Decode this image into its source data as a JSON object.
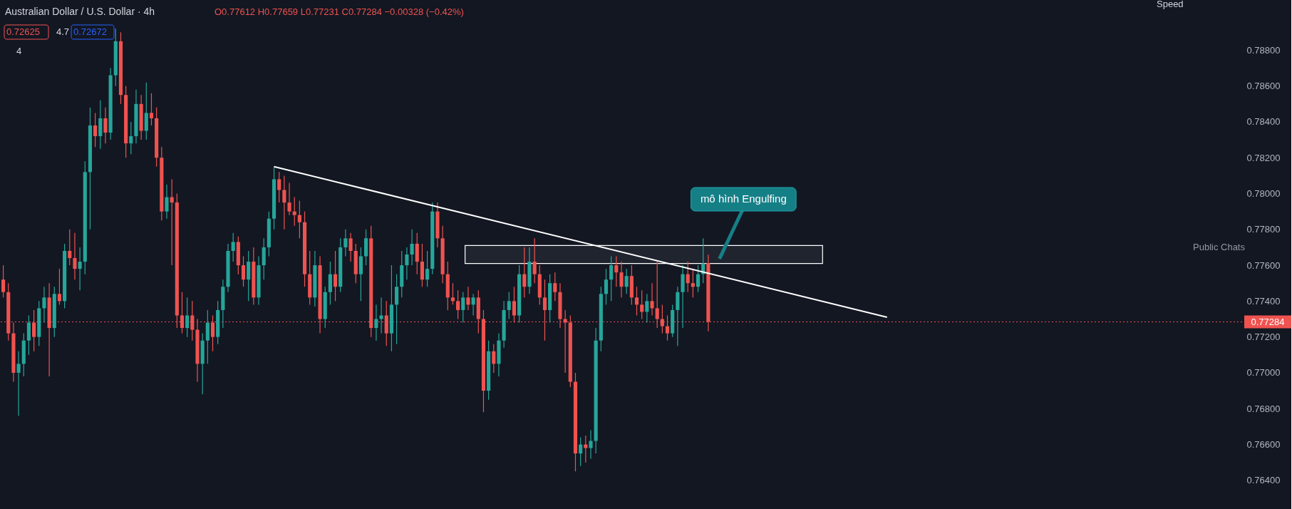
{
  "chart_data": {
    "type": "candlestick",
    "title": "Australian Dollar / U.S. Dollar · 4h",
    "subtitle": "O0.77612 H0.77659 L0.77231 C0.77284 −0.00328 (−0.42%)",
    "annotations": [
      "mô hình Engulfing",
      "0.72625",
      "4.7",
      "0.72672",
      "4",
      "Public Chats",
      "Speed"
    ],
    "colors": [
      "#ef5350",
      "#ef5350",
      "#ef5350",
      "#26a69a",
      "#26a69a",
      "#26a69a",
      "#ef5350",
      "#26a69a",
      "#26a69a",
      "#ef5350",
      "#26a69a",
      "#ef5350",
      "#26a69a",
      "#ef5350",
      "#ef5350",
      "#26a69a",
      "#26a69a",
      "#26a69a",
      "#ef5350",
      "#26a69a",
      "#ef5350",
      "#26a69a",
      "#26a69a",
      "#ef5350",
      "#ef5350",
      "#26a69a",
      "#26a69a",
      "#ef5350",
      "#26a69a",
      "#ef5350",
      "#ef5350",
      "#ef5350",
      "#26a69a",
      "#ef5350",
      "#ef5350",
      "#ef5350",
      "#26a69a",
      "#ef5350",
      "#ef5350",
      "#26a69a",
      "#26a69a",
      "#ef5350",
      "#26a69a",
      "#26a69a",
      "#26a69a",
      "#26a69a",
      "#ef5350",
      "#ef5350",
      "#26a69a",
      "#ef5350",
      "#26a69a",
      "#26a69a",
      "#26a69a",
      "#26a69a",
      "#ef5350",
      "#ef5350",
      "#ef5350",
      "#ef5350",
      "#ef5350",
      "#ef5350",
      "#ef5350",
      "#26a69a",
      "#ef5350",
      "#26a69a",
      "#26a69a",
      "#ef5350",
      "#26a69a",
      "#26a69a",
      "#ef5350",
      "#ef5350",
      "#26a69a",
      "#26a69a",
      "#ef5350",
      "#26a69a",
      "#26a69a",
      "#ef5350",
      "#26a69a",
      "#26a69a",
      "#26a69a",
      "#26a69a",
      "#26a69a",
      "#ef5350",
      "#ef5350",
      "#26a69a",
      "#26a69a",
      "#ef5350",
      "#ef5350",
      "#ef5350",
      "#ef5350",
      "#ef5350",
      "#26a69a",
      "#ef5350",
      "#26a69a",
      "#ef5350",
      "#ef5350",
      "#26a69a",
      "#ef5350",
      "#26a69a",
      "#26a69a",
      "#26a69a",
      "#ef5350",
      "#26a69a",
      "#ef5350",
      "#26a69a",
      "#ef5350",
      "#ef5350",
      "#ef5350",
      "#26a69a",
      "#ef5350",
      "#ef5350",
      "#ef5350",
      "#ef5350",
      "#ef5350",
      "#26a69a",
      "#ef5350",
      "#26a69a",
      "#26a69a",
      "#26a69a",
      "#26a69a",
      "#26a69a",
      "#ef5350",
      "#ef5350",
      "#26a69a",
      "#ef5350",
      "#ef5350",
      "#ef5350",
      "#26a69a",
      "#ef5350",
      "#ef5350",
      "#ef5350",
      "#ef5350",
      "#26a69a",
      "#26a69a",
      "#26a69a",
      "#ef5350",
      "#ef5350",
      "#26a69a",
      "#26a69a",
      "#ef5350",
      null,
      null,
      null,
      null,
      null,
      null,
      null,
      null,
      null,
      null,
      null,
      null,
      null,
      null,
      null,
      null,
      null,
      null,
      null,
      null,
      null,
      null,
      null,
      null,
      null,
      null,
      null,
      null,
      null,
      null,
      null,
      null,
      null,
      null,
      null,
      null,
      null,
      null,
      null,
      null,
      null,
      null,
      null,
      null,
      null,
      null,
      null,
      null,
      null,
      null,
      null,
      null,
      null,
      null,
      null,
      null,
      null,
      null,
      null,
      null,
      null,
      null,
      null,
      null,
      null,
      null,
      null,
      null,
      null,
      null,
      null,
      null,
      null,
      null,
      null,
      null,
      null,
      null,
      null,
      null,
      null,
      null,
      null,
      null,
      null,
      null,
      null,
      null,
      null,
      null,
      null,
      null,
      null,
      null,
      null,
      null,
      null,
      null,
      null,
      null,
      null,
      null,
      null,
      null
    ],
    "ylim": [
      0.7624,
      0.7908
    ],
    "yticks": [
      {
        "value": 0.764,
        "label": "0.76400"
      },
      {
        "value": 0.766,
        "label": "0.76600"
      },
      {
        "value": 0.768,
        "label": "0.76800"
      },
      {
        "value": 0.77,
        "label": "0.77000"
      },
      {
        "value": 0.772,
        "label": "0.77200"
      },
      {
        "value": 0.774,
        "label": "0.77400"
      },
      {
        "value": 0.776,
        "label": "0.77600"
      },
      {
        "value": 0.778,
        "label": "0.77800"
      },
      {
        "value": 0.78,
        "label": "0.78000"
      },
      {
        "value": 0.782,
        "label": "0.78200"
      },
      {
        "value": 0.784,
        "label": "0.78400"
      },
      {
        "value": 0.786,
        "label": "0.78600"
      },
      {
        "value": 0.788,
        "label": "0.78800"
      }
    ],
    "tick_labels": "y",
    "grid": false,
    "ref_lines": [
      {
        "axis": "y",
        "value": 0.77284,
        "label": "0.77284",
        "color": "#ef5350",
        "line_style": "dotted"
      }
    ],
    "bands": [
      {
        "axis": "y",
        "from": 0.7761,
        "to": 0.7771,
        "color": "#ffffff"
      }
    ],
    "series": [
      {
        "type": "line",
        "color": "#ffffff",
        "values": [
          null,
          null,
          null,
          null,
          null,
          null,
          null,
          null,
          null,
          null,
          null,
          null,
          null,
          null,
          null,
          null,
          null,
          null,
          null,
          null,
          null,
          null,
          null,
          null,
          null,
          null,
          null,
          null,
          null,
          null,
          null,
          null,
          null,
          null,
          null,
          null,
          null,
          null,
          null,
          null,
          null,
          null,
          null,
          null,
          null,
          null,
          null,
          null,
          null,
          null,
          null,
          null,
          null,
          0.7815,
          null,
          null,
          null,
          null,
          null,
          null,
          null,
          null,
          null,
          null,
          null,
          null,
          null,
          null,
          null,
          null,
          null,
          null,
          null,
          null,
          null,
          null,
          null,
          null,
          null,
          null,
          null,
          null,
          null,
          null,
          null,
          null,
          null,
          null,
          null,
          null,
          null,
          null,
          null,
          null,
          null,
          null,
          null,
          null,
          null,
          null,
          null,
          null,
          null,
          null,
          null,
          null,
          null,
          null,
          null,
          null,
          null,
          null,
          null,
          null,
          null,
          null,
          null,
          null,
          null,
          null,
          null,
          null,
          null,
          null,
          null,
          null,
          null,
          null,
          null,
          null,
          null,
          null,
          null,
          null,
          null,
          null,
          null,
          null,
          null,
          null,
          null,
          null,
          null,
          null,
          null,
          null,
          null,
          null,
          null,
          null,
          null,
          null,
          null,
          null,
          null,
          null,
          null,
          null,
          null,
          null,
          null,
          null,
          null,
          null,
          null,
          null,
          null,
          null,
          null,
          null,
          null,
          null,
          null,
          0.7731,
          null,
          null,
          null,
          null,
          null,
          null,
          null,
          null,
          null,
          null,
          null,
          null,
          null,
          null,
          null,
          null,
          null,
          null,
          null,
          null,
          null,
          null,
          null,
          null,
          null,
          null,
          null,
          null,
          null,
          null,
          null,
          null,
          null,
          null,
          null,
          null,
          null,
          null,
          null,
          null,
          null,
          null,
          null,
          null,
          null,
          null,
          null,
          null,
          null,
          null,
          null,
          null,
          null,
          null,
          null,
          null,
          null,
          null,
          null,
          null,
          null,
          null,
          null,
          null,
          null,
          null,
          null,
          null,
          null
        ]
      }
    ],
    "categories": [
      null,
      null,
      null,
      null,
      null,
      null,
      null,
      null,
      null,
      null,
      null,
      null,
      null,
      null,
      null,
      null,
      null,
      null,
      null,
      null,
      null,
      null,
      null,
      null,
      null,
      null,
      null,
      null,
      null,
      null,
      null,
      null,
      null,
      null,
      null,
      null,
      null,
      null,
      null,
      null,
      null,
      null,
      null,
      null,
      null,
      null,
      null,
      null,
      null,
      null,
      null,
      null,
      null,
      null,
      null,
      null,
      null,
      null,
      null,
      null,
      null,
      null,
      null,
      null,
      null,
      null,
      null,
      null,
      null,
      null,
      null,
      null,
      null,
      null,
      null,
      null,
      null,
      null,
      null,
      null,
      null,
      null,
      null,
      null,
      null,
      null,
      null,
      null,
      null,
      null,
      null,
      null,
      null,
      null,
      null,
      null,
      null,
      null,
      null,
      null,
      null,
      null,
      null,
      null,
      null,
      null,
      null,
      null,
      null,
      null,
      null,
      null,
      null,
      null,
      null,
      null,
      null,
      null,
      null,
      null,
      null,
      null,
      null,
      null,
      null,
      null,
      null,
      null,
      null,
      null,
      null,
      null,
      null,
      null,
      null,
      null,
      null,
      null,
      null,
      null,
      null,
      null,
      null,
      null,
      null,
      null,
      null,
      null,
      null,
      null,
      null,
      null,
      null,
      null,
      null,
      null,
      null,
      null,
      null,
      null,
      null,
      null,
      null,
      null,
      null,
      null,
      null,
      null,
      null,
      null,
      null,
      null,
      null,
      null,
      null,
      null,
      null,
      null,
      null,
      null,
      null,
      null,
      null,
      null,
      null,
      null,
      null,
      null,
      null,
      null,
      null,
      null,
      null,
      null,
      null,
      null,
      null,
      null,
      null,
      null,
      null,
      null,
      null,
      null,
      null,
      null,
      null,
      null,
      null,
      null,
      null,
      null,
      null,
      null,
      null,
      null,
      null,
      null,
      null,
      null,
      null,
      null,
      null,
      null,
      null,
      null,
      null,
      null,
      null,
      null,
      null,
      null,
      null,
      null,
      null,
      null,
      null,
      null,
      null,
      null,
      null,
      null,
      null
    ],
    "ohlc": [
      [
        0.7752,
        0.776,
        0.7742,
        0.7745
      ],
      [
        0.7745,
        0.775,
        0.7718,
        0.7722
      ],
      [
        0.7722,
        0.7728,
        0.7695,
        0.77
      ],
      [
        0.77,
        0.7712,
        0.7676,
        0.7705
      ],
      [
        0.7705,
        0.7722,
        0.7698,
        0.7718
      ],
      [
        0.7718,
        0.7732,
        0.771,
        0.7728
      ],
      [
        0.7728,
        0.7735,
        0.7712,
        0.772
      ],
      [
        0.772,
        0.774,
        0.7715,
        0.7736
      ],
      [
        0.7736,
        0.7748,
        0.7728,
        0.7742
      ],
      [
        0.7742,
        0.775,
        0.7698,
        0.7725
      ],
      [
        0.7725,
        0.7748,
        0.772,
        0.7744
      ],
      [
        0.7744,
        0.7758,
        0.7738,
        0.774
      ],
      [
        0.774,
        0.7772,
        0.7736,
        0.7768
      ],
      [
        0.7768,
        0.778,
        0.776,
        0.7764
      ],
      [
        0.7764,
        0.7778,
        0.7752,
        0.7758
      ],
      [
        0.7758,
        0.777,
        0.7746,
        0.7762
      ],
      [
        0.7762,
        0.7818,
        0.7755,
        0.7812
      ],
      [
        0.7812,
        0.7848,
        0.778,
        0.7838
      ],
      [
        0.7838,
        0.7845,
        0.7826,
        0.7832
      ],
      [
        0.7832,
        0.7852,
        0.7825,
        0.7842
      ],
      [
        0.7842,
        0.7848,
        0.7828,
        0.7834
      ],
      [
        0.7834,
        0.787,
        0.783,
        0.7866
      ],
      [
        0.7866,
        0.7892,
        0.786,
        0.7885
      ],
      [
        0.7885,
        0.789,
        0.785,
        0.7855
      ],
      [
        0.7855,
        0.786,
        0.782,
        0.7828
      ],
      [
        0.7828,
        0.784,
        0.7822,
        0.7832
      ],
      [
        0.7832,
        0.7858,
        0.7828,
        0.785
      ],
      [
        0.785,
        0.7855,
        0.783,
        0.7835
      ],
      [
        0.7835,
        0.7862,
        0.783,
        0.7845
      ],
      [
        0.7845,
        0.7856,
        0.7838,
        0.7842
      ],
      [
        0.7842,
        0.7848,
        0.7815,
        0.782
      ],
      [
        0.782,
        0.7826,
        0.7785,
        0.779
      ],
      [
        0.779,
        0.7805,
        0.7786,
        0.7798
      ],
      [
        0.7798,
        0.7808,
        0.776,
        0.7795
      ],
      [
        0.7795,
        0.78,
        0.7725,
        0.7732
      ],
      [
        0.7732,
        0.7745,
        0.7722,
        0.7725
      ],
      [
        0.7725,
        0.7742,
        0.772,
        0.7732
      ],
      [
        0.7732,
        0.774,
        0.7718,
        0.7724
      ],
      [
        0.7724,
        0.773,
        0.7695,
        0.7705
      ],
      [
        0.7705,
        0.7722,
        0.7688,
        0.7718
      ],
      [
        0.7718,
        0.7735,
        0.7705,
        0.7728
      ],
      [
        0.7728,
        0.7732,
        0.7712,
        0.772
      ],
      [
        0.772,
        0.774,
        0.7716,
        0.7735
      ],
      [
        0.7735,
        0.7752,
        0.7725,
        0.7748
      ],
      [
        0.7748,
        0.7772,
        0.7745,
        0.7768
      ],
      [
        0.7768,
        0.7778,
        0.7762,
        0.7773
      ],
      [
        0.7773,
        0.7776,
        0.7755,
        0.776
      ],
      [
        0.776,
        0.7765,
        0.7748,
        0.7752
      ],
      [
        0.7752,
        0.7768,
        0.774,
        0.7762
      ],
      [
        0.7762,
        0.777,
        0.7738,
        0.7742
      ],
      [
        0.7742,
        0.7765,
        0.7738,
        0.776
      ],
      [
        0.776,
        0.7775,
        0.7752,
        0.777
      ],
      [
        0.777,
        0.779,
        0.7765,
        0.7786
      ],
      [
        0.7786,
        0.7815,
        0.778,
        0.7808
      ],
      [
        0.7808,
        0.7812,
        0.7795,
        0.7802
      ],
      [
        0.7802,
        0.781,
        0.778,
        0.7795
      ],
      [
        0.7795,
        0.7806,
        0.7788,
        0.779
      ],
      [
        0.779,
        0.7798,
        0.7782,
        0.7788
      ],
      [
        0.7788,
        0.7796,
        0.7775,
        0.7784
      ],
      [
        0.7784,
        0.779,
        0.7748,
        0.7755
      ],
      [
        0.7755,
        0.7768,
        0.7738,
        0.7742
      ],
      [
        0.7742,
        0.7768,
        0.7737,
        0.776
      ],
      [
        0.776,
        0.7765,
        0.7722,
        0.773
      ],
      [
        0.773,
        0.7748,
        0.7725,
        0.7745
      ],
      [
        0.7745,
        0.7762,
        0.7738,
        0.7755
      ],
      [
        0.7755,
        0.7768,
        0.774,
        0.7748
      ],
      [
        0.7748,
        0.7775,
        0.7745,
        0.777
      ],
      [
        0.777,
        0.778,
        0.7765,
        0.7775
      ],
      [
        0.7775,
        0.7778,
        0.7762,
        0.7768
      ],
      [
        0.7768,
        0.7772,
        0.775,
        0.7755
      ],
      [
        0.7755,
        0.777,
        0.774,
        0.7765
      ],
      [
        0.7765,
        0.778,
        0.776,
        0.7775
      ],
      [
        0.7775,
        0.7782,
        0.772,
        0.7725
      ],
      [
        0.7725,
        0.7738,
        0.7718,
        0.773
      ],
      [
        0.773,
        0.7742,
        0.7722,
        0.7732
      ],
      [
        0.7732,
        0.774,
        0.7715,
        0.7722
      ],
      [
        0.7722,
        0.776,
        0.7712,
        0.7738
      ],
      [
        0.7738,
        0.7755,
        0.7716,
        0.7748
      ],
      [
        0.7748,
        0.7768,
        0.7742,
        0.776
      ],
      [
        0.776,
        0.777,
        0.7752,
        0.7766
      ],
      [
        0.7766,
        0.778,
        0.776,
        0.7772
      ],
      [
        0.7772,
        0.7778,
        0.7755,
        0.7762
      ],
      [
        0.7762,
        0.7772,
        0.7748,
        0.7752
      ],
      [
        0.7752,
        0.7768,
        0.7748,
        0.7758
      ],
      [
        0.7758,
        0.7795,
        0.7755,
        0.779
      ],
      [
        0.779,
        0.7795,
        0.777,
        0.7775
      ],
      [
        0.7775,
        0.7782,
        0.775,
        0.7755
      ],
      [
        0.7755,
        0.7762,
        0.7735,
        0.7742
      ],
      [
        0.7742,
        0.775,
        0.7738,
        0.774
      ],
      [
        0.774,
        0.7746,
        0.773,
        0.7735
      ],
      [
        0.7735,
        0.7745,
        0.7728,
        0.7742
      ],
      [
        0.7742,
        0.7748,
        0.7735,
        0.7738
      ],
      [
        0.7738,
        0.7744,
        0.7732,
        0.7742
      ],
      [
        0.7742,
        0.7746,
        0.7722,
        0.773
      ],
      [
        0.773,
        0.7735,
        0.7678,
        0.769
      ],
      [
        0.769,
        0.7718,
        0.7685,
        0.7712
      ],
      [
        0.7712,
        0.7716,
        0.77,
        0.7705
      ],
      [
        0.7705,
        0.7722,
        0.7698,
        0.7718
      ],
      [
        0.7718,
        0.774,
        0.7714,
        0.7735
      ],
      [
        0.7735,
        0.7745,
        0.773,
        0.774
      ],
      [
        0.774,
        0.7748,
        0.7728,
        0.7732
      ],
      [
        0.7732,
        0.776,
        0.7728,
        0.7755
      ],
      [
        0.7755,
        0.777,
        0.7742,
        0.7748
      ],
      [
        0.7748,
        0.777,
        0.7744,
        0.7762
      ],
      [
        0.7762,
        0.7775,
        0.775,
        0.7755
      ],
      [
        0.7755,
        0.776,
        0.7738,
        0.7742
      ],
      [
        0.7742,
        0.7752,
        0.7718,
        0.7735
      ],
      [
        0.7735,
        0.7755,
        0.7728,
        0.775
      ],
      [
        0.775,
        0.7756,
        0.774,
        0.7745
      ],
      [
        0.7745,
        0.775,
        0.7725,
        0.773
      ],
      [
        0.773,
        0.7735,
        0.77,
        0.7728
      ],
      [
        0.7728,
        0.7732,
        0.7692,
        0.7695
      ],
      [
        0.7695,
        0.77,
        0.7645,
        0.7655
      ],
      [
        0.7655,
        0.7664,
        0.7648,
        0.766
      ],
      [
        0.766,
        0.7665,
        0.765,
        0.7658
      ],
      [
        0.7658,
        0.7668,
        0.7652,
        0.7662
      ],
      [
        0.7662,
        0.7725,
        0.7655,
        0.7718
      ],
      [
        0.7718,
        0.7748,
        0.7712,
        0.7744
      ],
      [
        0.7744,
        0.7758,
        0.7738,
        0.7752
      ],
      [
        0.7752,
        0.7765,
        0.774,
        0.776
      ],
      [
        0.776,
        0.7765,
        0.7748,
        0.7756
      ],
      [
        0.7756,
        0.7762,
        0.7742,
        0.7748
      ],
      [
        0.7748,
        0.7758,
        0.7744,
        0.7754
      ],
      [
        0.7754,
        0.776,
        0.7738,
        0.7742
      ],
      [
        0.7742,
        0.7748,
        0.7732,
        0.7738
      ],
      [
        0.7738,
        0.7746,
        0.773,
        0.7734
      ],
      [
        0.7734,
        0.7744,
        0.7728,
        0.774
      ],
      [
        0.774,
        0.775,
        0.7732,
        0.7736
      ],
      [
        0.7736,
        0.7762,
        0.7725,
        0.773
      ],
      [
        0.773,
        0.7738,
        0.7722,
        0.7726
      ],
      [
        0.7726,
        0.7732,
        0.7718,
        0.7722
      ],
      [
        0.7722,
        0.7738,
        0.772,
        0.7735
      ],
      [
        0.7735,
        0.7748,
        0.7715,
        0.7745
      ],
      [
        0.7745,
        0.776,
        0.7725,
        0.7755
      ],
      [
        0.7755,
        0.7762,
        0.7745,
        0.775
      ],
      [
        0.775,
        0.7758,
        0.7742,
        0.7748
      ],
      [
        0.7748,
        0.776,
        0.7745,
        0.7755
      ],
      [
        0.7755,
        0.7775,
        0.775,
        0.7761
      ],
      [
        0.77612,
        0.77659,
        0.77231,
        0.77284
      ],
      null,
      null,
      null,
      null,
      null,
      null,
      null,
      null,
      null,
      null,
      null,
      null,
      null,
      null,
      null,
      null,
      null,
      null,
      null,
      null,
      null,
      null,
      null,
      null,
      null,
      null,
      null,
      null,
      null,
      null,
      null,
      null,
      null,
      null,
      null,
      null,
      null,
      null,
      null,
      null,
      null,
      null,
      null,
      null,
      null,
      null,
      null,
      null,
      null,
      null,
      null,
      null,
      null,
      null,
      null,
      null,
      null,
      null,
      null,
      null,
      null,
      null,
      null,
      null,
      null,
      null,
      null,
      null,
      null,
      null,
      null,
      null,
      null,
      null,
      null,
      null,
      null,
      null,
      null,
      null,
      null,
      null,
      null,
      null,
      null,
      null,
      null,
      null,
      null,
      null,
      null,
      null,
      null,
      null,
      null,
      null,
      null,
      null,
      null,
      null,
      null,
      null,
      null,
      null
    ]
  }
}
